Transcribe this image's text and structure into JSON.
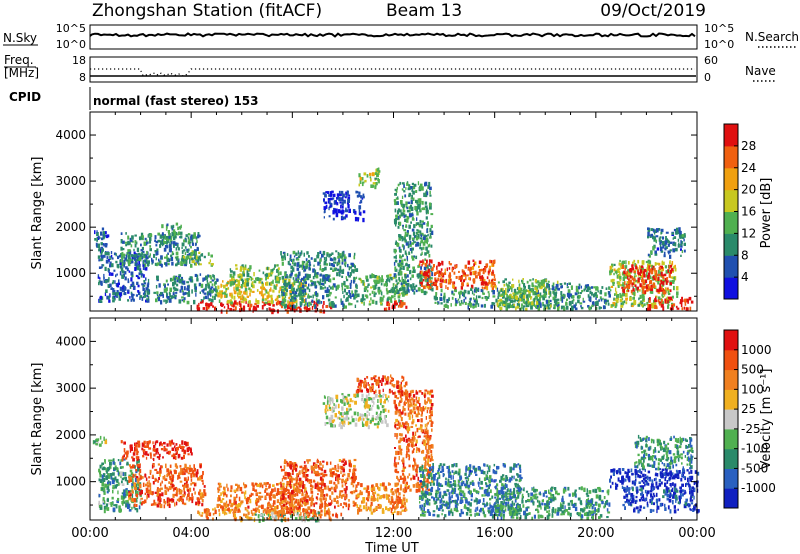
{
  "header": {
    "station": "Zhongshan Station (fitACF)",
    "beam": "Beam 13",
    "date": "09/Oct/2019"
  },
  "panels": {
    "nsky": {
      "label": "N.Sky",
      "right_label": "N.Search",
      "ticks_left": [
        "10^5",
        "10^0"
      ],
      "ticks_right": [
        "10^5",
        "10^0"
      ]
    },
    "freq": {
      "label_line1": "Freq.",
      "label_line2": "[MHz]",
      "right_label": "Nave",
      "ticks_left": [
        "18",
        "8"
      ],
      "ticks_right": [
        "60",
        "0"
      ]
    },
    "cpid": {
      "label": "CPID",
      "value": "normal (fast stereo) 153"
    }
  },
  "chart_data": [
    {
      "type": "heatmap",
      "title": "",
      "quantity": "Power",
      "colorbar_label": "Power [dB]",
      "colorbar_ticks": [
        "4",
        "8",
        "12",
        "16",
        "20",
        "24",
        "28"
      ],
      "ylabel": "Slant Range [km]",
      "ylim": [
        180,
        4500
      ],
      "yticks": [
        1000,
        2000,
        3000,
        4000
      ],
      "xlim": [
        0,
        24
      ],
      "colors": [
        "#1010e0",
        "#2050b0",
        "#2a8a6a",
        "#50b050",
        "#c8c820",
        "#f0a010",
        "#f06010",
        "#e01010"
      ],
      "regions": [
        {
          "t0": 0.1,
          "t1": 0.7,
          "r0": 1500,
          "r1": 2000,
          "level": 0.2
        },
        {
          "t0": 0.3,
          "t1": 2.3,
          "r0": 400,
          "r1": 1500,
          "level": 0.2
        },
        {
          "t0": 1.2,
          "t1": 4.3,
          "r0": 1200,
          "r1": 1900,
          "level": 0.3
        },
        {
          "t0": 2.8,
          "t1": 3.6,
          "r0": 1800,
          "r1": 2100,
          "level": 0.35
        },
        {
          "t0": 2.5,
          "t1": 5.0,
          "r0": 400,
          "r1": 1000,
          "level": 0.3
        },
        {
          "t0": 3.5,
          "t1": 4.8,
          "r0": 1200,
          "r1": 1500,
          "level": 0.45
        },
        {
          "t0": 4.2,
          "t1": 9.5,
          "r0": 200,
          "r1": 420,
          "level": 0.95
        },
        {
          "t0": 5.0,
          "t1": 8.5,
          "r0": 380,
          "r1": 900,
          "level": 0.6
        },
        {
          "t0": 5.5,
          "t1": 7.5,
          "r0": 800,
          "r1": 1200,
          "level": 0.45
        },
        {
          "t0": 7.5,
          "t1": 10.5,
          "r0": 300,
          "r1": 1500,
          "level": 0.3
        },
        {
          "t0": 9.2,
          "t1": 10.8,
          "r0": 2200,
          "r1": 2800,
          "level": 0.1
        },
        {
          "t0": 10.6,
          "t1": 11.4,
          "r0": 2900,
          "r1": 3300,
          "level": 0.5
        },
        {
          "t0": 10.5,
          "t1": 12.5,
          "r0": 350,
          "r1": 1000,
          "level": 0.4
        },
        {
          "t0": 11.5,
          "t1": 12.5,
          "r0": 250,
          "r1": 420,
          "level": 0.9
        },
        {
          "t0": 12.0,
          "t1": 13.5,
          "r0": 600,
          "r1": 3000,
          "level": 0.35
        },
        {
          "t0": 13.0,
          "t1": 16.0,
          "r0": 700,
          "r1": 1300,
          "level": 0.85
        },
        {
          "t0": 13.5,
          "t1": 18.0,
          "r0": 300,
          "r1": 700,
          "level": 0.35
        },
        {
          "t0": 16.0,
          "t1": 18.5,
          "r0": 250,
          "r1": 900,
          "level": 0.45
        },
        {
          "t0": 18.0,
          "t1": 20.5,
          "r0": 250,
          "r1": 800,
          "level": 0.3
        },
        {
          "t0": 20.5,
          "t1": 23.2,
          "r0": 300,
          "r1": 1300,
          "level": 0.5
        },
        {
          "t0": 21.0,
          "t1": 23.0,
          "r0": 600,
          "r1": 1200,
          "level": 0.88
        },
        {
          "t0": 22.0,
          "t1": 23.8,
          "r0": 250,
          "r1": 500,
          "level": 0.92
        },
        {
          "t0": 22.0,
          "t1": 23.5,
          "r0": 1400,
          "r1": 2000,
          "level": 0.25
        }
      ]
    },
    {
      "type": "heatmap",
      "title": "",
      "quantity": "Velocity",
      "colorbar_label": "Velocity [m s⁻¹]",
      "colorbar_ticks": [
        "1000",
        "500",
        "100",
        "25",
        "-25",
        "-100",
        "-500",
        "-1000"
      ],
      "ylabel": "Slant Range [km]",
      "ylim": [
        180,
        4500
      ],
      "yticks": [
        1000,
        2000,
        3000,
        4000
      ],
      "xlim": [
        0,
        24
      ],
      "xlabel": "Time UT",
      "xticks": [
        "00:00",
        "04:00",
        "08:00",
        "12:00",
        "16:00",
        "20:00",
        "00:00"
      ],
      "colors": [
        "#1020c0",
        "#2a60c0",
        "#2a8a6a",
        "#50b050",
        "#c8c8c8",
        "#f0b020",
        "#f08020",
        "#f05010",
        "#e01010"
      ],
      "regions": [
        {
          "t0": 0.1,
          "t1": 0.7,
          "r0": 1800,
          "r1": 2000,
          "level": 0.47
        },
        {
          "t0": 0.3,
          "t1": 2.0,
          "r0": 400,
          "r1": 1500,
          "level": 0.32
        },
        {
          "t0": 1.2,
          "t1": 4.0,
          "r0": 1500,
          "r1": 1900,
          "level": 0.92
        },
        {
          "t0": 1.5,
          "t1": 4.5,
          "r0": 500,
          "r1": 1400,
          "level": 0.8
        },
        {
          "t0": 4.2,
          "t1": 9.5,
          "r0": 220,
          "r1": 450,
          "level": 0.72
        },
        {
          "t0": 5.0,
          "t1": 8.5,
          "r0": 400,
          "r1": 1000,
          "level": 0.75
        },
        {
          "t0": 6.5,
          "t1": 9.0,
          "r0": 200,
          "r1": 380,
          "level": 0.35
        },
        {
          "t0": 7.5,
          "t1": 10.5,
          "r0": 300,
          "r1": 1500,
          "level": 0.8
        },
        {
          "t0": 9.2,
          "t1": 11.8,
          "r0": 2200,
          "r1": 2900,
          "level": 0.5
        },
        {
          "t0": 10.5,
          "t1": 12.5,
          "r0": 2900,
          "r1": 3300,
          "level": 0.85
        },
        {
          "t0": 10.5,
          "t1": 12.5,
          "r0": 350,
          "r1": 1000,
          "level": 0.72
        },
        {
          "t0": 12.0,
          "t1": 13.5,
          "r0": 800,
          "r1": 3000,
          "level": 0.78
        },
        {
          "t0": 13.0,
          "t1": 17.0,
          "r0": 300,
          "r1": 1400,
          "level": 0.25
        },
        {
          "t0": 16.0,
          "t1": 20.5,
          "r0": 250,
          "r1": 900,
          "level": 0.3
        },
        {
          "t0": 20.5,
          "t1": 24.0,
          "r0": 900,
          "r1": 1300,
          "level": 0.05
        },
        {
          "t0": 21.0,
          "t1": 24.0,
          "r0": 400,
          "r1": 900,
          "level": 0.12
        },
        {
          "t0": 21.5,
          "t1": 23.8,
          "r0": 1300,
          "r1": 2000,
          "level": 0.3
        }
      ]
    }
  ]
}
